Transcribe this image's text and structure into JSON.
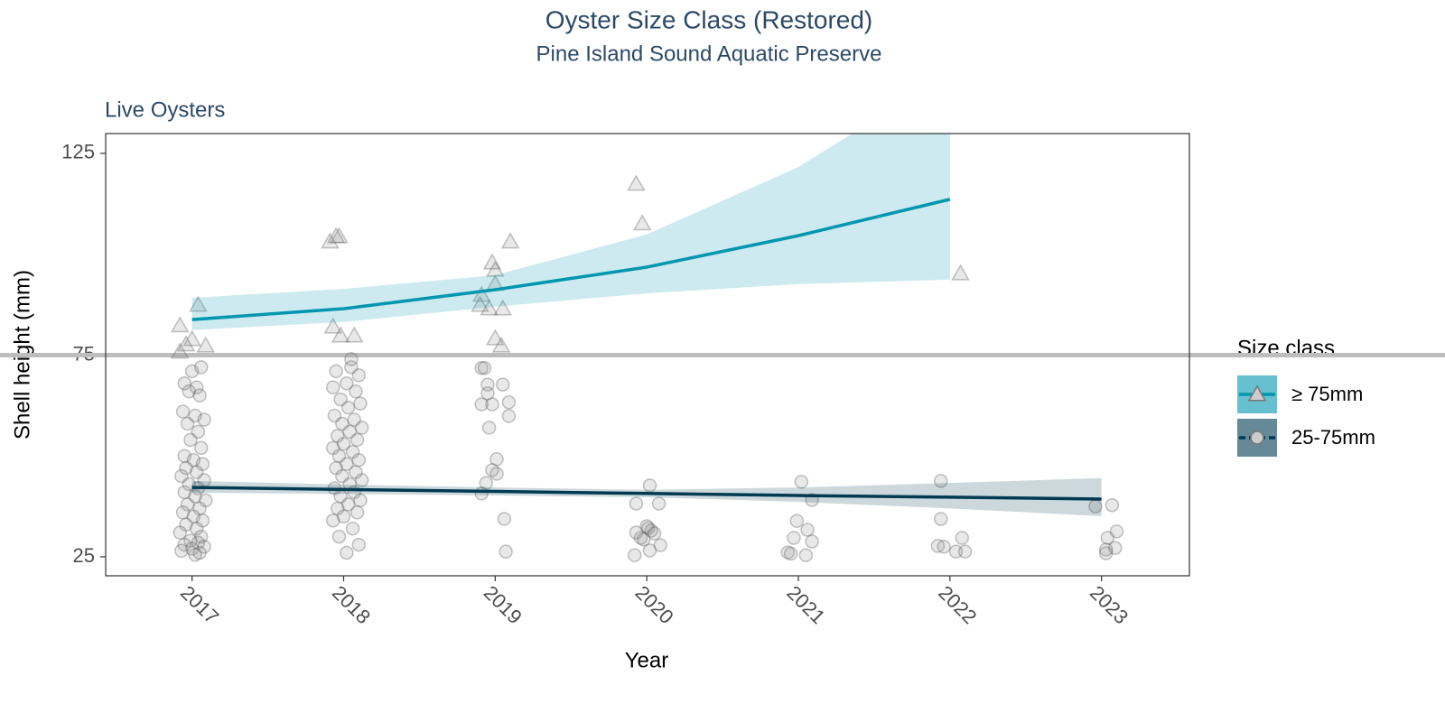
{
  "chart_data": {
    "type": "scatter",
    "title": "Oyster Size Class (Restored)",
    "subtitle": "Pine Island Sound Aquatic Preserve",
    "panel_label": "Live Oysters",
    "xlabel": "Year",
    "ylabel": "Shell height (mm)",
    "xlim": [
      2016.43,
      2023.58
    ],
    "ylim": [
      20.3,
      129.9
    ],
    "xticks": [
      2017,
      2018,
      2019,
      2020,
      2021,
      2022,
      2023
    ],
    "yticks": [
      25,
      75,
      125
    ],
    "reference_line": {
      "value": 75,
      "color": "#bdbdbd"
    },
    "legend_title": "Size class",
    "legend_position": "right",
    "point_color": "#8c8c8c",
    "series": [
      {
        "name": "≥ 75mm",
        "color": "#0096b0",
        "marker": "triangle",
        "x": [
          2016.92,
          2017.04,
          2017.0,
          2017.09,
          2016.92,
          2016.96,
          2017.91,
          2017.97,
          2017.95,
          2017.93,
          2017.98,
          2018.07,
          2018.98,
          2019.0,
          2019.1,
          2019.0,
          2018.91,
          2018.9,
          2018.96,
          2019.05,
          2019.0,
          2019.04,
          2019.93,
          2019.97,
          2022.07
        ],
        "y": [
          82.3,
          87.4,
          78.9,
          77.3,
          75.8,
          77.6,
          103.1,
          104.4,
          104.4,
          82.0,
          79.8,
          79.8,
          97.9,
          96.1,
          103.1,
          92.6,
          89.9,
          87.4,
          86.5,
          86.5,
          79.1,
          77.3,
          117.4,
          107.6,
          95.2
        ],
        "fit_x": [
          2017,
          2018,
          2019,
          2020,
          2021,
          2022
        ],
        "fit": [
          83.8,
          86.5,
          91.2,
          96.8,
          104.6,
          113.6
        ],
        "fit_lower": [
          81.2,
          83.2,
          87.0,
          90.3,
          92.6,
          93.7
        ],
        "fit_upper": [
          89.2,
          91.4,
          94.8,
          104.9,
          121.6,
          145.0
        ]
      },
      {
        "name": "25-75mm",
        "color": "#003a52",
        "marker": "circle",
        "x": [
          2016.95,
          2017.03,
          2016.98,
          2017.05,
          2016.94,
          2017.02,
          2017.08,
          2016.97,
          2017.04,
          2016.99,
          2017.06,
          2016.95,
          2017.01,
          2017.07,
          2016.96,
          2017.03,
          2016.93,
          2017.08,
          2016.98,
          2017.04,
          2016.95,
          2017.02,
          2017.09,
          2016.97,
          2017.05,
          2016.94,
          2017.01,
          2017.07,
          2016.96,
          2017.03,
          2016.92,
          2017.06,
          2016.99,
          2017.04,
          2016.95,
          2017.08,
          2017.0,
          2016.93,
          2017.05,
          2017.02,
          2017.0,
          2017.06,
          2017.95,
          2018.05,
          2018.1,
          2018.02,
          2017.93,
          2018.08,
          2017.98,
          2018.11,
          2018.03,
          2017.94,
          2018.07,
          2017.99,
          2018.12,
          2018.04,
          2017.96,
          2018.09,
          2018.0,
          2017.93,
          2018.06,
          2017.97,
          2018.1,
          2018.02,
          2017.95,
          2018.08,
          2017.99,
          2018.12,
          2018.04,
          2017.94,
          2018.07,
          2017.98,
          2018.11,
          2018.03,
          2017.96,
          2018.09,
          2018.0,
          2017.93,
          2018.06,
          2017.97,
          2018.1,
          2018.02,
          2018.05,
          2018.91,
          2018.93,
          2019.05,
          2018.95,
          2018.95,
          2019.09,
          2018.91,
          2018.98,
          2019.09,
          2018.96,
          2019.01,
          2019.01,
          2018.98,
          2018.94,
          2018.91,
          2019.06,
          2019.07,
          2020.02,
          2019.93,
          2020.08,
          2019.93,
          2020.01,
          2020.03,
          2019.96,
          2020.09,
          2020.02,
          2019.92,
          2019.98,
          2020.05,
          2020.0,
          2021.02,
          2021.09,
          2020.99,
          2021.06,
          2020.97,
          2021.09,
          2020.93,
          2021.05,
          2020.95,
          2021.94,
          2021.94,
          2022.08,
          2021.92,
          2021.96,
          2022.04,
          2022.1,
          2022.96,
          2023.07,
          2023.1,
          2023.04,
          2023.09,
          2023.03,
          2023.03
        ],
        "y": [
          68,
          67,
          66,
          65,
          61,
          60,
          59,
          58,
          56,
          54,
          52,
          50,
          49,
          48,
          47,
          46,
          45,
          44,
          43,
          42,
          41,
          40,
          39,
          38,
          37,
          36,
          35,
          34,
          33,
          32,
          31,
          30,
          29,
          28.5,
          28,
          27.5,
          27,
          26.5,
          26,
          25.5,
          71,
          72,
          71,
          72,
          70,
          68,
          67,
          66,
          64,
          63,
          62,
          60,
          59,
          58,
          57,
          56,
          55,
          54,
          53,
          52,
          51,
          50,
          49,
          48,
          47,
          46,
          45,
          44,
          43,
          42,
          41,
          40,
          39,
          38,
          37,
          36,
          35,
          34,
          32,
          30,
          28,
          26,
          74,
          71.8,
          71.8,
          67.7,
          67.7,
          65.5,
          63.3,
          62.8,
          62.8,
          59.9,
          57,
          49.2,
          45.6,
          46.5,
          43.3,
          40.7,
          34.4,
          26.3,
          42.7,
          38.2,
          38.2,
          31,
          32.1,
          31.5,
          29.7,
          27.9,
          26.6,
          25.4,
          29.3,
          30.8,
          32.6,
          43.6,
          39.1,
          33.9,
          31.7,
          29.7,
          28.8,
          26.1,
          25.4,
          25.8,
          43.8,
          34.4,
          29.7,
          27.7,
          27.5,
          26.3,
          26.3,
          37.5,
          37.8,
          31.3,
          29.7,
          27.2,
          26.8,
          25.9
        ],
        "fit_x": [
          2017,
          2018,
          2019,
          2020,
          2021,
          2022,
          2023
        ],
        "fit": [
          42.2,
          41.7,
          41.2,
          40.7,
          40.2,
          39.8,
          39.3
        ],
        "fit_lower": [
          40.9,
          40.6,
          40.2,
          39.8,
          38.6,
          37.0,
          35.1
        ],
        "fit_upper": [
          43.8,
          42.9,
          42.2,
          41.6,
          42.2,
          43.3,
          44.5
        ]
      }
    ]
  }
}
